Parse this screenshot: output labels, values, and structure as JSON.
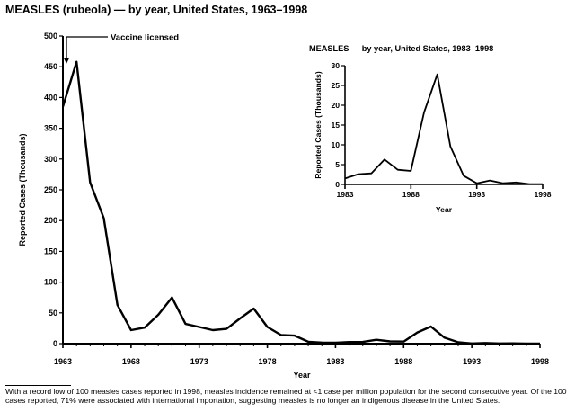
{
  "title": "MEASLES (rubeola) — by year, United States, 1963–1998",
  "footnote": "With a record low of 100 measles cases reported in 1998, measles incidence remained at <1 case per million population for the second consecutive year. Of the 100 cases reported, 71% were associated with international importation, suggesting measles is no longer an indigenous disease in the United States.",
  "chart_data": [
    {
      "type": "line",
      "title": "MEASLES (rubeola) — by year, United States, 1963–1998",
      "xlabel": "Year",
      "ylabel": "Reported Cases (Thousands)",
      "xlim": [
        1963,
        1998
      ],
      "ylim": [
        0,
        500
      ],
      "xticks": [
        1963,
        1968,
        1973,
        1978,
        1983,
        1988,
        1993,
        1998
      ],
      "yticks": [
        0,
        50,
        100,
        150,
        200,
        250,
        300,
        350,
        400,
        450,
        500
      ],
      "grid": false,
      "annotations": [
        {
          "text": "Vaccine licensed",
          "x": 1963,
          "y": 500,
          "arrow_to_y": 455
        }
      ],
      "series": [
        {
          "name": "Reported cases",
          "x": [
            1963,
            1964,
            1965,
            1966,
            1967,
            1968,
            1969,
            1970,
            1971,
            1972,
            1973,
            1974,
            1975,
            1976,
            1977,
            1978,
            1979,
            1980,
            1981,
            1982,
            1983,
            1984,
            1985,
            1986,
            1987,
            1988,
            1989,
            1990,
            1991,
            1992,
            1993,
            1994,
            1995,
            1996,
            1997,
            1998
          ],
          "values": [
            385,
            458,
            262,
            204,
            63,
            22,
            26,
            47,
            75,
            32,
            27,
            22,
            24,
            41,
            57,
            27,
            14,
            13,
            3,
            1.7,
            1.5,
            2.6,
            2.8,
            6.3,
            3.7,
            3.4,
            18.2,
            27.8,
            9.6,
            2.2,
            0.3,
            1,
            0.3,
            0.5,
            0.1,
            0.1
          ]
        }
      ]
    },
    {
      "type": "line",
      "title": "MEASLES — by year, United States, 1983–1998",
      "xlabel": "Year",
      "ylabel": "Reported Cases (Thousands)",
      "xlim": [
        1983,
        1998
      ],
      "ylim": [
        0,
        30
      ],
      "xticks": [
        1983,
        1988,
        1993,
        1998
      ],
      "yticks": [
        0,
        5,
        10,
        15,
        20,
        25,
        30
      ],
      "grid": false,
      "series": [
        {
          "name": "Reported cases",
          "x": [
            1983,
            1984,
            1985,
            1986,
            1987,
            1988,
            1989,
            1990,
            1991,
            1992,
            1993,
            1994,
            1995,
            1996,
            1997,
            1998
          ],
          "values": [
            1.5,
            2.6,
            2.8,
            6.3,
            3.7,
            3.4,
            18.2,
            27.8,
            9.6,
            2.2,
            0.3,
            1,
            0.3,
            0.5,
            0.1,
            0.1
          ]
        }
      ]
    }
  ]
}
